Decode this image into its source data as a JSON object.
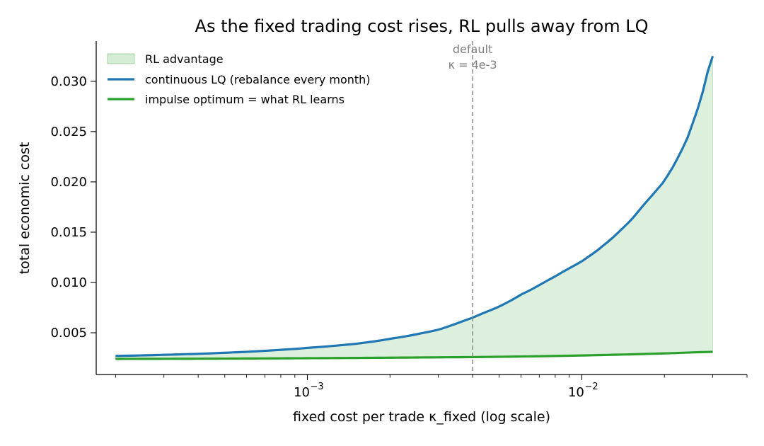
{
  "chart_data": {
    "type": "line",
    "title": "As the fixed trading cost rises, RL pulls away from LQ",
    "xlabel": "fixed cost per trade  κ_fixed  (log scale)",
    "ylabel": "total economic cost",
    "x_scale": "log",
    "xlim": [
      0.00017,
      0.04
    ],
    "ylim": [
      0.00085,
      0.034
    ],
    "x_major_ticks": [
      {
        "value": 0.001,
        "base": "10",
        "exp": "−3"
      },
      {
        "value": 0.01,
        "base": "10",
        "exp": "−2"
      }
    ],
    "y_ticks": [
      {
        "value": 0.005,
        "label": "0.005"
      },
      {
        "value": 0.01,
        "label": "0.010"
      },
      {
        "value": 0.015,
        "label": "0.015"
      },
      {
        "value": 0.02,
        "label": "0.020"
      },
      {
        "value": 0.025,
        "label": "0.025"
      },
      {
        "value": 0.03,
        "label": "0.030"
      }
    ],
    "grid": false,
    "legend_position": "upper-left",
    "series": [
      {
        "name": "continuous LQ (rebalance every month)",
        "color": "#1f77b4",
        "x": [
          0.0002,
          0.0004,
          0.0006,
          0.0008,
          0.001,
          0.0015,
          0.002,
          0.003,
          0.004,
          0.005,
          0.006,
          0.008,
          0.01,
          0.012,
          0.015,
          0.018,
          0.02,
          0.024,
          0.027,
          0.03
        ],
        "y": [
          0.0027,
          0.0029,
          0.0031,
          0.0033,
          0.0035,
          0.0039,
          0.0044,
          0.0053,
          0.0065,
          0.0076,
          0.0088,
          0.0106,
          0.0121,
          0.0137,
          0.0161,
          0.0186,
          0.0202,
          0.024,
          0.028,
          0.0325
        ]
      },
      {
        "name": "impulse optimum = what RL learns",
        "color": "#2ca02c",
        "x": [
          0.0002,
          0.0004,
          0.0006,
          0.001,
          0.002,
          0.004,
          0.006,
          0.01,
          0.015,
          0.02,
          0.03
        ],
        "y": [
          0.0024,
          0.00242,
          0.00244,
          0.00247,
          0.00252,
          0.00258,
          0.00264,
          0.00274,
          0.00285,
          0.00295,
          0.0031
        ]
      }
    ],
    "fill_between": {
      "name": "RL advantage",
      "color": "#2ca02c",
      "opacity": 0.16
    },
    "vline": {
      "x": 0.004,
      "color": "#808080",
      "style": "dashed",
      "label_line1": "default",
      "label_line2": "κ = 4e-3"
    }
  }
}
